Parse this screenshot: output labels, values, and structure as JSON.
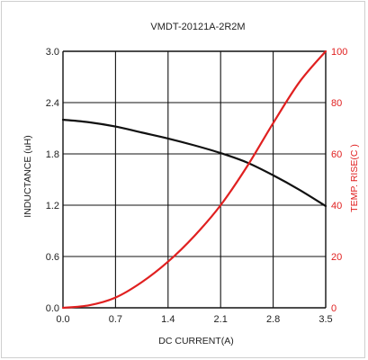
{
  "chart_data": {
    "type": "line",
    "title": "VMDT-20121A-2R2M",
    "xlabel": "DC CURRENT(A)",
    "ylabel": "INDUCTANCE (uH)",
    "y2label": "TEMP. RISE(C )",
    "xlim": [
      0.0,
      3.5
    ],
    "ylim": [
      0.0,
      3.0
    ],
    "y2lim": [
      0,
      100
    ],
    "xticks": [
      "0.0",
      "0.7",
      "1.4",
      "2.1",
      "2.8",
      "3.5"
    ],
    "yticks": [
      "0.0",
      "0.6",
      "1.2",
      "1.8",
      "2.4",
      "3.0"
    ],
    "y2ticks": [
      "0",
      "20",
      "40",
      "60",
      "80",
      "100"
    ],
    "grid": true,
    "series": [
      {
        "axis": "left",
        "color": "#111111",
        "x": [
          0.0,
          0.35,
          0.7,
          1.05,
          1.4,
          1.75,
          2.1,
          2.45,
          2.8,
          3.15,
          3.5
        ],
        "y": [
          2.2,
          2.17,
          2.12,
          2.05,
          1.98,
          1.9,
          1.81,
          1.7,
          1.55,
          1.38,
          1.19
        ]
      },
      {
        "axis": "right",
        "color": "#e02020",
        "x": [
          0.0,
          0.35,
          0.7,
          1.05,
          1.4,
          1.75,
          2.1,
          2.45,
          2.8,
          3.15,
          3.5
        ],
        "y": [
          0,
          1,
          4,
          10,
          18,
          28,
          40,
          55,
          72,
          88,
          100
        ]
      }
    ]
  }
}
